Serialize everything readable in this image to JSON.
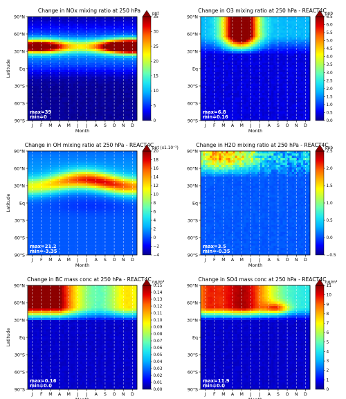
{
  "colormap": [
    "#08008c",
    "#0000ff",
    "#005aff",
    "#00b4ff",
    "#1ee6f0",
    "#64ffb4",
    "#b4ff50",
    "#ffff00",
    "#ffb400",
    "#ff6400",
    "#e60000",
    "#8c0000"
  ],
  "grid_color": "#ffffff",
  "chart_data": [
    {
      "type": "heatmap",
      "title": "Change in NOx mixing ratio at 250 hPa",
      "xlabel": "Month",
      "ylabel": "Latitude",
      "x_ticks": [
        "J",
        "F",
        "M",
        "A",
        "M",
        "J",
        "J",
        "A",
        "S",
        "O",
        "N",
        "D"
      ],
      "y_ticks": [
        "90°N",
        "60°N",
        "30°N",
        "Eq",
        "30°S",
        "60°S",
        "90°S"
      ],
      "colorbar_unit": "ppt",
      "colorbar_ticks": [
        "0",
        "5",
        "10",
        "15",
        "20",
        "25",
        "30",
        "35"
      ],
      "vmin": 0,
      "vmax": 35,
      "annotation_max": "max=39",
      "annotation_min": "min=0",
      "pattern": "nox"
    },
    {
      "type": "heatmap",
      "title": "Change in O3 mixing ratio at 250 hPa - REACT4C",
      "xlabel": "Month",
      "ylabel": "",
      "x_ticks": [
        "J",
        "F",
        "M",
        "A",
        "M",
        "J",
        "J",
        "A",
        "S",
        "O",
        "N",
        "D"
      ],
      "y_ticks": [
        "90°N",
        "60°N",
        "30°N",
        "Eq",
        "30°S",
        "60°S",
        "90°S"
      ],
      "colorbar_unit": "ppb",
      "colorbar_ticks": [
        "0.0",
        "0.5",
        "1.0",
        "1.5",
        "2.0",
        "2.5",
        "3.0",
        "3.5",
        "4.0",
        "4.5",
        "5.0",
        "5.5",
        "6.0",
        "6.5"
      ],
      "vmin": 0,
      "vmax": 6.5,
      "annotation_max": "max=6.8",
      "annotation_min": "min=0.16",
      "pattern": "o3"
    },
    {
      "type": "heatmap",
      "title": "Change in OH mixing ratio at 250 hPa - REACT4C",
      "xlabel": "Month",
      "ylabel": "Latitude",
      "x_ticks": [
        "J",
        "F",
        "M",
        "A",
        "M",
        "J",
        "J",
        "A",
        "S",
        "O",
        "N",
        "D"
      ],
      "y_ticks": [
        "90°N",
        "60°N",
        "30°N",
        "Eq",
        "30°S",
        "60°S",
        "90°S"
      ],
      "colorbar_unit": "ppt (x1.10⁻³)",
      "colorbar_ticks": [
        "−4",
        "−2",
        "0",
        "2",
        "4",
        "6",
        "8",
        "10",
        "12",
        "14",
        "16",
        "18",
        "20"
      ],
      "vmin": -4,
      "vmax": 20,
      "annotation_max": "max=21.2",
      "annotation_min": "min=-3.35",
      "pattern": "oh"
    },
    {
      "type": "heatmap",
      "title": "Change in H2O mixing ratio at 250 hPa - REACT4C",
      "xlabel": "Month",
      "ylabel": "",
      "x_ticks": [
        "J",
        "F",
        "M",
        "A",
        "M",
        "J",
        "J",
        "A",
        "S",
        "O",
        "N",
        "D"
      ],
      "y_ticks": [
        "90°N",
        "60°N",
        "30°N",
        "Eq",
        "30°S",
        "60°S",
        "90°S"
      ],
      "colorbar_unit": "ppb",
      "colorbar_ticks": [
        "−0.5",
        "0.0",
        "0.5",
        "1.0",
        "1.5",
        "2.0",
        "2.5"
      ],
      "vmin": -0.5,
      "vmax": 2.5,
      "annotation_max": "max=3.5",
      "annotation_min": "min=-0.35",
      "pattern": "h2o"
    },
    {
      "type": "heatmap",
      "title": "Change in BC mass conc at 250 hPa - REACT4C",
      "xlabel": "Month",
      "ylabel": "Latitude",
      "x_ticks": [
        "J",
        "F",
        "M",
        "A",
        "M",
        "J",
        "J",
        "A",
        "S",
        "O",
        "N",
        "D"
      ],
      "y_ticks": [
        "90°N",
        "60°N",
        "30°N",
        "Eq",
        "30°S",
        "60°S",
        "90°S"
      ],
      "colorbar_unit": "ng/m³",
      "colorbar_ticks": [
        "0.00",
        "0.01",
        "0.02",
        "0.03",
        "0.04",
        "0.05",
        "0.06",
        "0.07",
        "0.08",
        "0.09",
        "0.10",
        "0.11",
        "0.12",
        "0.13",
        "0.14",
        "0.15"
      ],
      "vmin": 0,
      "vmax": 0.15,
      "annotation_max": "max=0.16",
      "annotation_min": "min=0.0",
      "pattern": "bc"
    },
    {
      "type": "heatmap",
      "title": "Change in SO4 mass conc at 250 hPa - REACT4C",
      "xlabel": "Month",
      "ylabel": "",
      "x_ticks": [
        "J",
        "F",
        "M",
        "A",
        "M",
        "J",
        "J",
        "A",
        "S",
        "O",
        "N",
        "D"
      ],
      "y_ticks": [
        "90°N",
        "60°N",
        "30°N",
        "Eq",
        "30°S",
        "60°S",
        "90°S"
      ],
      "colorbar_unit": "ng/m³",
      "colorbar_ticks": [
        "0",
        "1",
        "2",
        "3",
        "4",
        "5",
        "6",
        "7",
        "8",
        "9",
        "10",
        "11"
      ],
      "vmin": 0,
      "vmax": 11,
      "annotation_max": "max=11.9",
      "annotation_min": "min=0.0",
      "pattern": "so4"
    }
  ]
}
